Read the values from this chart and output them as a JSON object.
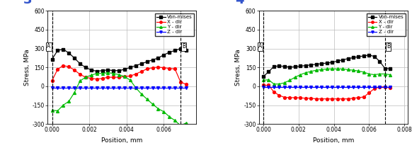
{
  "plot3": {
    "x": [
      0.0,
      0.0003,
      0.0006,
      0.0009,
      0.0012,
      0.0015,
      0.0018,
      0.0021,
      0.0024,
      0.0027,
      0.003,
      0.0033,
      0.0036,
      0.0039,
      0.0042,
      0.0045,
      0.0048,
      0.0051,
      0.0054,
      0.0057,
      0.006,
      0.0063,
      0.0066,
      0.0069,
      0.0072
    ],
    "von_mises": [
      215,
      285,
      295,
      265,
      225,
      180,
      150,
      130,
      120,
      125,
      130,
      125,
      125,
      135,
      150,
      165,
      180,
      195,
      210,
      225,
      250,
      270,
      285,
      300,
      285
    ],
    "x_dir": [
      45,
      135,
      165,
      155,
      130,
      95,
      72,
      62,
      58,
      62,
      72,
      72,
      72,
      78,
      82,
      98,
      118,
      138,
      148,
      152,
      148,
      142,
      138,
      35,
      15
    ],
    "y_dir": [
      -190,
      -195,
      -150,
      -120,
      -50,
      42,
      72,
      88,
      102,
      102,
      108,
      102,
      92,
      78,
      48,
      -12,
      -62,
      -102,
      -142,
      -178,
      -202,
      -242,
      -272,
      -312,
      -292
    ],
    "z_dir": [
      -12,
      -12,
      -12,
      -12,
      -12,
      -12,
      -12,
      -12,
      -12,
      -12,
      -12,
      -12,
      -12,
      -12,
      -12,
      -12,
      -12,
      -12,
      -12,
      -12,
      -12,
      -12,
      -12,
      -12,
      -12
    ],
    "vline_A": 0.0,
    "vline_B": 0.0069,
    "xlabel": "Position, mm",
    "ylabel": "Stress, MPa",
    "ylim": [
      -300,
      600
    ],
    "xlim": [
      -0.00025,
      0.00775
    ],
    "yticks": [
      -300,
      -150,
      0,
      150,
      300,
      450,
      600
    ],
    "xticks": [
      0.0,
      0.002,
      0.004,
      0.006
    ],
    "xtick_labels": [
      "0.000",
      "0.002",
      "0.004",
      "0.006"
    ],
    "panel_label": "3"
  },
  "plot4": {
    "x": [
      0.0,
      0.0003,
      0.0006,
      0.0009,
      0.0012,
      0.0015,
      0.0018,
      0.0021,
      0.0024,
      0.0027,
      0.003,
      0.0033,
      0.0036,
      0.0039,
      0.0042,
      0.0045,
      0.0048,
      0.0051,
      0.0054,
      0.0057,
      0.006,
      0.0063,
      0.0066,
      0.0069,
      0.0072
    ],
    "von_mises": [
      78,
      115,
      158,
      162,
      158,
      152,
      155,
      160,
      165,
      170,
      175,
      180,
      185,
      190,
      200,
      210,
      220,
      228,
      235,
      242,
      248,
      238,
      198,
      142,
      140
    ],
    "x_dir": [
      8,
      8,
      -45,
      -72,
      -88,
      -90,
      -90,
      -92,
      -95,
      -95,
      -100,
      -100,
      -100,
      -100,
      -100,
      -100,
      -100,
      -95,
      -90,
      -85,
      -52,
      -18,
      -5,
      -5,
      -12
    ],
    "y_dir": [
      48,
      52,
      18,
      18,
      28,
      48,
      72,
      92,
      108,
      118,
      128,
      132,
      138,
      138,
      138,
      138,
      132,
      128,
      122,
      112,
      98,
      92,
      98,
      98,
      92
    ],
    "z_dir": [
      -5,
      -5,
      -5,
      -5,
      -5,
      -5,
      -5,
      -5,
      -5,
      -5,
      -5,
      -5,
      -5,
      -5,
      -5,
      -5,
      -5,
      -5,
      -5,
      -5,
      -5,
      -5,
      -5,
      -5,
      -5
    ],
    "vline_A": 0.0,
    "vline_B": 0.0069,
    "xlabel": "Position, mm",
    "ylabel": "Stress, MPa",
    "ylim": [
      -300,
      600
    ],
    "xlim": [
      -0.00025,
      0.0082
    ],
    "yticks": [
      -300,
      -150,
      0,
      150,
      300,
      450,
      600
    ],
    "xticks": [
      0.0,
      0.002,
      0.004,
      0.006,
      0.008
    ],
    "xtick_labels": [
      "0.000",
      "0.002",
      "0.004",
      "0.006",
      "0.008"
    ],
    "panel_label": "4"
  },
  "legend": {
    "von_mises_label": "Von-mises",
    "x_dir_label": "X - dir",
    "y_dir_label": "Y - dir",
    "z_dir_label": "Z - dir",
    "von_mises_color": "#000000",
    "x_dir_color": "#ff0000",
    "y_dir_color": "#00bb00",
    "z_dir_color": "#0000ff",
    "marker_von": "s",
    "marker_x": "o",
    "marker_y": "^",
    "marker_z": "v"
  },
  "grid_color": "#bbbbbb",
  "bg_color": "#ffffff"
}
